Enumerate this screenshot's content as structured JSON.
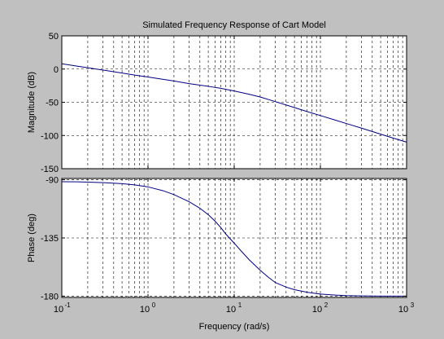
{
  "figure": {
    "background": "#c0c0c0",
    "axes_background": "#ffffff",
    "line_color": "#000080",
    "grid_color": "#000000"
  },
  "chart_data": [
    {
      "type": "line",
      "title": "Simulated Frequency Response of Cart Model",
      "ylabel": "Magnitude (dB)",
      "xlabel": "",
      "xscale": "log",
      "xlim": [
        0.1,
        1000
      ],
      "ylim": [
        -150,
        50
      ],
      "yticks": [
        50,
        0,
        -50,
        -100,
        -150
      ],
      "grid": true,
      "x": [
        0.1,
        0.15,
        0.2,
        0.3,
        0.5,
        0.7,
        1,
        1.5,
        2,
        3,
        5,
        7,
        10,
        15,
        20,
        30,
        50,
        70,
        100,
        150,
        200,
        300,
        500,
        700,
        1000
      ],
      "y": [
        8,
        4.5,
        2,
        -1.5,
        -6,
        -9,
        -12,
        -15.5,
        -18,
        -22,
        -26,
        -29,
        -33,
        -38,
        -42,
        -49,
        -58,
        -64,
        -70,
        -77,
        -82,
        -89,
        -98,
        -104,
        -110
      ]
    },
    {
      "type": "line",
      "title": "",
      "ylabel": "Phase (deg)",
      "xlabel": "Frequency  (rad/s)",
      "xscale": "log",
      "xlim": [
        0.1,
        1000
      ],
      "ylim": [
        -181,
        -89
      ],
      "yticks": [
        -90,
        -135,
        -180
      ],
      "grid": true,
      "x": [
        0.1,
        0.15,
        0.2,
        0.3,
        0.5,
        0.7,
        1,
        1.5,
        2,
        3,
        4,
        5,
        6,
        7,
        8,
        10,
        12,
        15,
        20,
        25,
        30,
        40,
        50,
        70,
        100,
        150,
        200,
        300,
        500,
        700,
        1000
      ],
      "y": [
        -91.5,
        -91.6,
        -91.8,
        -92.2,
        -93,
        -94,
        -95.5,
        -98.5,
        -101.5,
        -107,
        -112,
        -117,
        -122,
        -127,
        -132,
        -139,
        -145,
        -152,
        -160,
        -165.5,
        -169.5,
        -173,
        -175,
        -177,
        -178.4,
        -179.2,
        -179.6,
        -179.8,
        -180,
        -180,
        -180
      ]
    }
  ]
}
